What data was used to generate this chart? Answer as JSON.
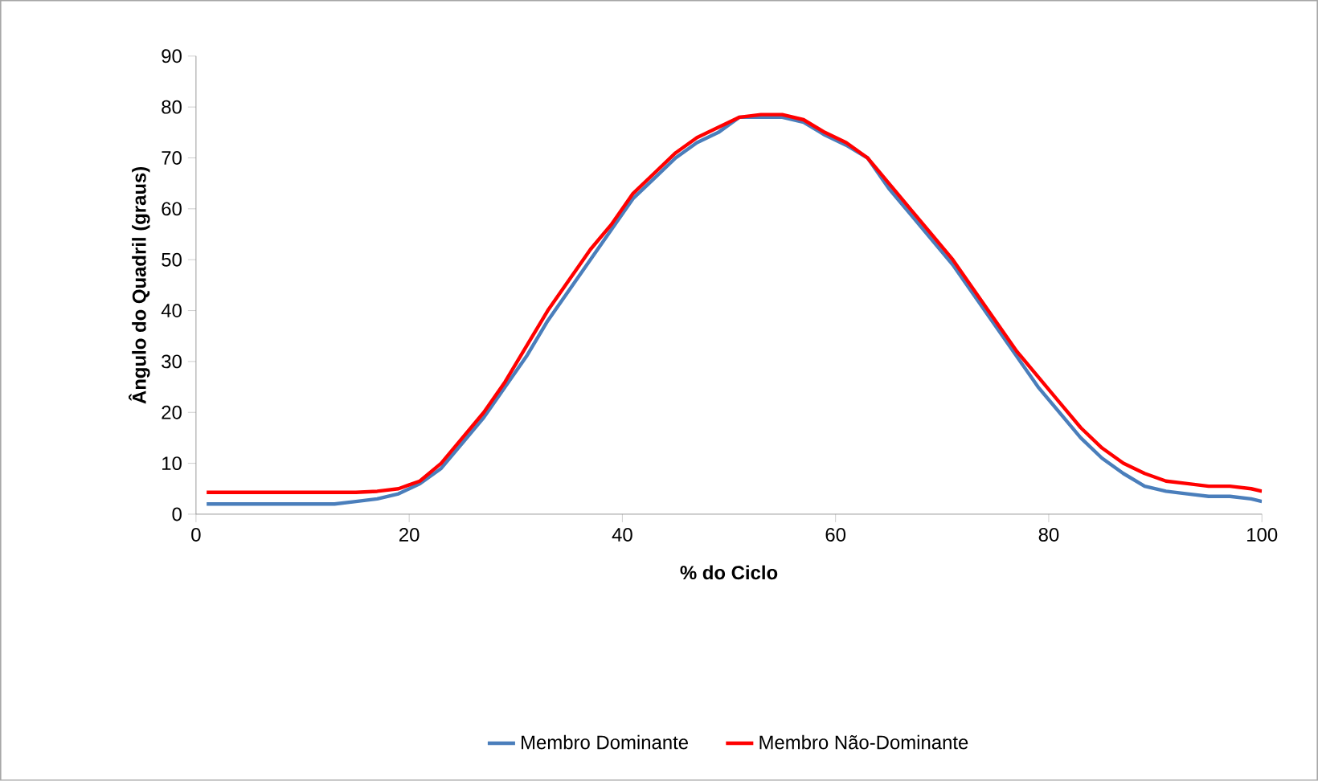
{
  "chart_data": {
    "type": "line",
    "xlabel": "% do Ciclo",
    "ylabel": "Ângulo do Quadril (graus)",
    "x": [
      1,
      3,
      5,
      7,
      9,
      11,
      13,
      15,
      17,
      19,
      21,
      23,
      25,
      27,
      29,
      31,
      33,
      35,
      37,
      39,
      41,
      43,
      45,
      47,
      49,
      51,
      53,
      55,
      57,
      59,
      61,
      63,
      65,
      67,
      69,
      71,
      73,
      75,
      77,
      79,
      81,
      83,
      85,
      87,
      89,
      91,
      93,
      95,
      97,
      99,
      100
    ],
    "series": [
      {
        "name": "Membro Dominante",
        "color": "#4a7ebb",
        "values": [
          2,
          2,
          2,
          2,
          2,
          2,
          2,
          2.5,
          3,
          4,
          6,
          9,
          14,
          19,
          25,
          31,
          38,
          44,
          50,
          56,
          62,
          66,
          70,
          73,
          75,
          78,
          78,
          78,
          77,
          74.5,
          72.5,
          70,
          64,
          59,
          54,
          49,
          43,
          37,
          31,
          25,
          20,
          15,
          11,
          8,
          5.5,
          4.5,
          4,
          3.5,
          3.5,
          3,
          2.5
        ]
      },
      {
        "name": "Membro Não-Dominante",
        "color": "#ff0000",
        "values": [
          4.3,
          4.3,
          4.3,
          4.3,
          4.3,
          4.3,
          4.3,
          4.3,
          4.5,
          5,
          6.5,
          10,
          15,
          20,
          26,
          33,
          40,
          46,
          52,
          57,
          63,
          67,
          71,
          74,
          76,
          78,
          78.5,
          78.5,
          77.5,
          75,
          73,
          70,
          65,
          60,
          55,
          50,
          44,
          38,
          32,
          27,
          22,
          17,
          13,
          10,
          8,
          6.5,
          6,
          5.5,
          5.5,
          5,
          4.5
        ]
      }
    ],
    "xlim": [
      0,
      100
    ],
    "xticks": [
      0,
      20,
      40,
      60,
      80,
      100
    ],
    "ylim": [
      0,
      90
    ],
    "yticks": [
      0,
      10,
      20,
      30,
      40,
      50,
      60,
      70,
      80,
      90
    ],
    "legend": "bottom",
    "grid": false,
    "marker": "none",
    "line_style": "solid"
  }
}
